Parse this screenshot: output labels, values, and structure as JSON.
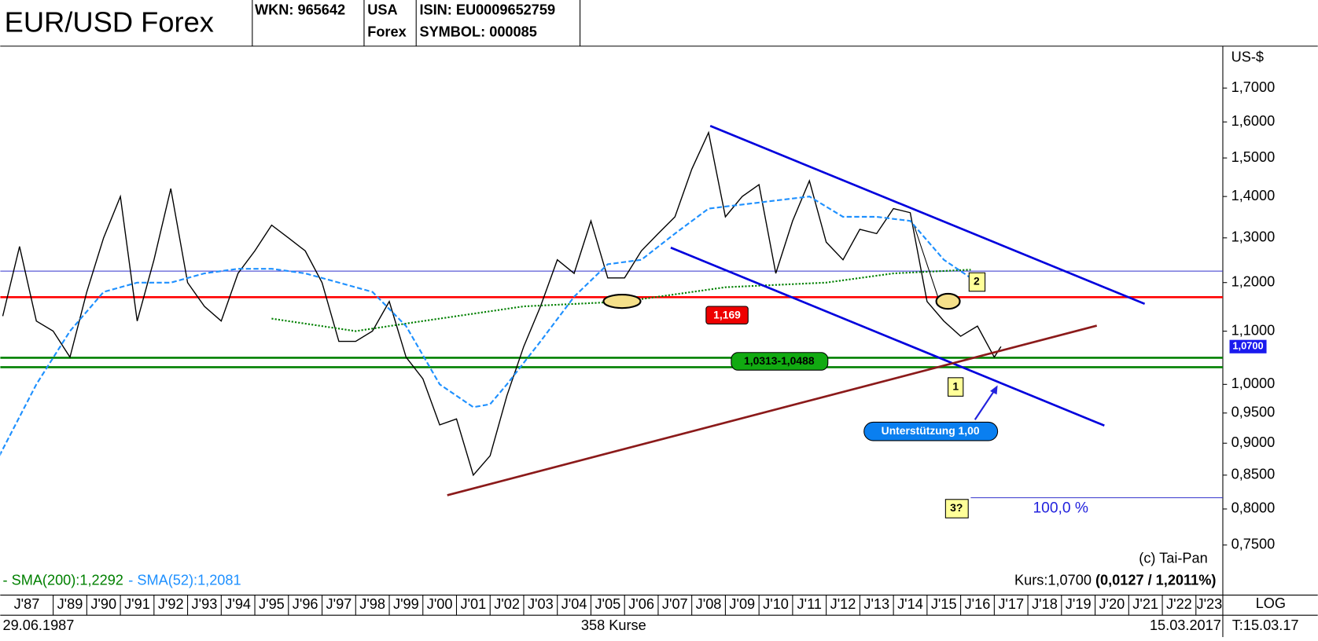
{
  "header": {
    "title": "EUR/USD Forex",
    "wkn": "WKN: 965642",
    "country": "USA",
    "market": "Forex",
    "isin": "ISIN: EU0009652759",
    "symbol": "SYMBOL: 000085"
  },
  "chart_data": {
    "type": "line",
    "log_scale": true,
    "y_unit": "US-$",
    "xlim": [
      1987.425,
      2023.8
    ],
    "ylim": [
      0.695,
      1.827
    ],
    "xticks": [
      {
        "value": 1987,
        "label": "J'87"
      },
      {
        "value": 1989,
        "label": "J'89"
      },
      {
        "value": 1990,
        "label": "J'90"
      },
      {
        "value": 1991,
        "label": "J'91"
      },
      {
        "value": 1992,
        "label": "J'92"
      },
      {
        "value": 1993,
        "label": "J'93"
      },
      {
        "value": 1994,
        "label": "J'94"
      },
      {
        "value": 1995,
        "label": "J'95"
      },
      {
        "value": 1996,
        "label": "J'96"
      },
      {
        "value": 1997,
        "label": "J'97"
      },
      {
        "value": 1998,
        "label": "J'98"
      },
      {
        "value": 1999,
        "label": "J'99"
      },
      {
        "value": 2000,
        "label": "J'00"
      },
      {
        "value": 2001,
        "label": "J'01"
      },
      {
        "value": 2002,
        "label": "J'02"
      },
      {
        "value": 2003,
        "label": "J'03"
      },
      {
        "value": 2004,
        "label": "J'04"
      },
      {
        "value": 2005,
        "label": "J'05"
      },
      {
        "value": 2006,
        "label": "J'06"
      },
      {
        "value": 2007,
        "label": "J'07"
      },
      {
        "value": 2008,
        "label": "J'08"
      },
      {
        "value": 2009,
        "label": "J'09"
      },
      {
        "value": 2010,
        "label": "J'10"
      },
      {
        "value": 2011,
        "label": "J'11"
      },
      {
        "value": 2012,
        "label": "J'12"
      },
      {
        "value": 2013,
        "label": "J'13"
      },
      {
        "value": 2014,
        "label": "J'14"
      },
      {
        "value": 2015,
        "label": "J'15"
      },
      {
        "value": 2016,
        "label": "J'16"
      },
      {
        "value": 2017,
        "label": "J'17"
      },
      {
        "value": 2018,
        "label": "J'18"
      },
      {
        "value": 2019,
        "label": "J'19"
      },
      {
        "value": 2020,
        "label": "J'20"
      },
      {
        "value": 2021,
        "label": "J'21"
      },
      {
        "value": 2022,
        "label": "J'22"
      },
      {
        "value": 2023,
        "label": "J'23"
      }
    ],
    "yticks": [
      {
        "value": 1.7,
        "label": "1,7000"
      },
      {
        "value": 1.6,
        "label": "1,6000"
      },
      {
        "value": 1.5,
        "label": "1,5000"
      },
      {
        "value": 1.4,
        "label": "1,4000"
      },
      {
        "value": 1.3,
        "label": "1,3000"
      },
      {
        "value": 1.2,
        "label": "1,2000"
      },
      {
        "value": 1.1,
        "label": "1,1000"
      },
      {
        "value": 1.0,
        "label": "1,0000"
      },
      {
        "value": 0.95,
        "label": "0,9500"
      },
      {
        "value": 0.9,
        "label": "0,9000"
      },
      {
        "value": 0.85,
        "label": "0,8500"
      },
      {
        "value": 0.8,
        "label": "0,8000"
      },
      {
        "value": 0.75,
        "label": "0,7500"
      }
    ],
    "series": [
      {
        "color": "#000000",
        "x": [
          1987.5,
          1988,
          1988.5,
          1989,
          1989.5,
          1990,
          1990.5,
          1991,
          1991.5,
          1992,
          1992.5,
          1993,
          1993.5,
          1994,
          1994.5,
          1995,
          1995.5,
          1996,
          1996.5,
          1997,
          1997.5,
          1998,
          1998.5,
          1999,
          1999.5,
          2000,
          2000.5,
          2001,
          2001.5,
          2002,
          2002.5,
          2003,
          2003.5,
          2004,
          2004.5,
          2005,
          2005.5,
          2006,
          2006.5,
          2007,
          2007.5,
          2008,
          2008.5,
          2009,
          2009.5,
          2010,
          2010.5,
          2011,
          2011.5,
          2012,
          2012.5,
          2013,
          2013.5,
          2014,
          2014.5,
          2015,
          2015.5,
          2016,
          2016.5,
          2017,
          2017.2
        ],
        "values": [
          1.13,
          1.28,
          1.12,
          1.1,
          1.05,
          1.18,
          1.3,
          1.4,
          1.12,
          1.25,
          1.42,
          1.2,
          1.15,
          1.12,
          1.22,
          1.27,
          1.33,
          1.3,
          1.27,
          1.2,
          1.08,
          1.08,
          1.1,
          1.16,
          1.05,
          1.01,
          0.93,
          0.94,
          0.85,
          0.88,
          0.98,
          1.07,
          1.15,
          1.25,
          1.22,
          1.34,
          1.21,
          1.21,
          1.27,
          1.31,
          1.35,
          1.47,
          1.57,
          1.35,
          1.4,
          1.43,
          1.22,
          1.34,
          1.44,
          1.29,
          1.25,
          1.32,
          1.31,
          1.37,
          1.36,
          1.16,
          1.12,
          1.09,
          1.11,
          1.05,
          1.07
        ]
      },
      {
        "name": "- SMA(200):1,2292",
        "color": "#008000",
        "style": "dotted",
        "x": [
          1995.5,
          1998,
          2000,
          2003,
          2006,
          2009,
          2012,
          2014,
          2016.3
        ],
        "values": [
          1.125,
          1.1,
          1.12,
          1.15,
          1.16,
          1.19,
          1.2,
          1.22,
          1.228
        ]
      },
      {
        "name": "- SMA(52):1,2081",
        "color": "#1e90ff",
        "style": "dashed",
        "x": [
          1987.4,
          1988.5,
          1989.5,
          1990.5,
          1991.5,
          1992.5,
          1993.5,
          1994.5,
          1995.5,
          1996.5,
          1997.5,
          1998.5,
          1999.5,
          2000.5,
          2001.5,
          2002,
          2002.5,
          2003.5,
          2004.5,
          2005.5,
          2006.5,
          2007.5,
          2008.5,
          2009.5,
          2010.5,
          2011.5,
          2012.5,
          2013.5,
          2014.5,
          2015.5,
          2016.3
        ],
        "values": [
          0.88,
          1.0,
          1.1,
          1.18,
          1.2,
          1.2,
          1.22,
          1.23,
          1.23,
          1.22,
          1.2,
          1.18,
          1.11,
          1.0,
          0.96,
          0.965,
          1.0,
          1.08,
          1.17,
          1.24,
          1.25,
          1.31,
          1.37,
          1.38,
          1.39,
          1.4,
          1.35,
          1.35,
          1.34,
          1.25,
          1.21
        ]
      }
    ],
    "resistance": {
      "value": 1.169,
      "label": "1,169",
      "color": "#ff0000"
    },
    "support_zone": {
      "values": [
        1.0313,
        1.0488
      ],
      "label": "1,0313-1,0488",
      "color": "#008000"
    },
    "last_price": {
      "value": 1.07,
      "label": "1,0700"
    },
    "annotations": {
      "mark1": "1",
      "mark2": "2",
      "mark3": "3?",
      "target": "100,0 %",
      "support": "Unterstützung 1,00"
    },
    "copyright": "(c) Tai-Pan",
    "kurs": "Kurs:1,0700 ",
    "change": "(0,0127 / 1,2011%)",
    "footer": {
      "start": "29.06.1987",
      "count": "358 Kurse",
      "end": "15.03.2017",
      "scale": "LOG",
      "time": "T:15.03.17"
    }
  }
}
